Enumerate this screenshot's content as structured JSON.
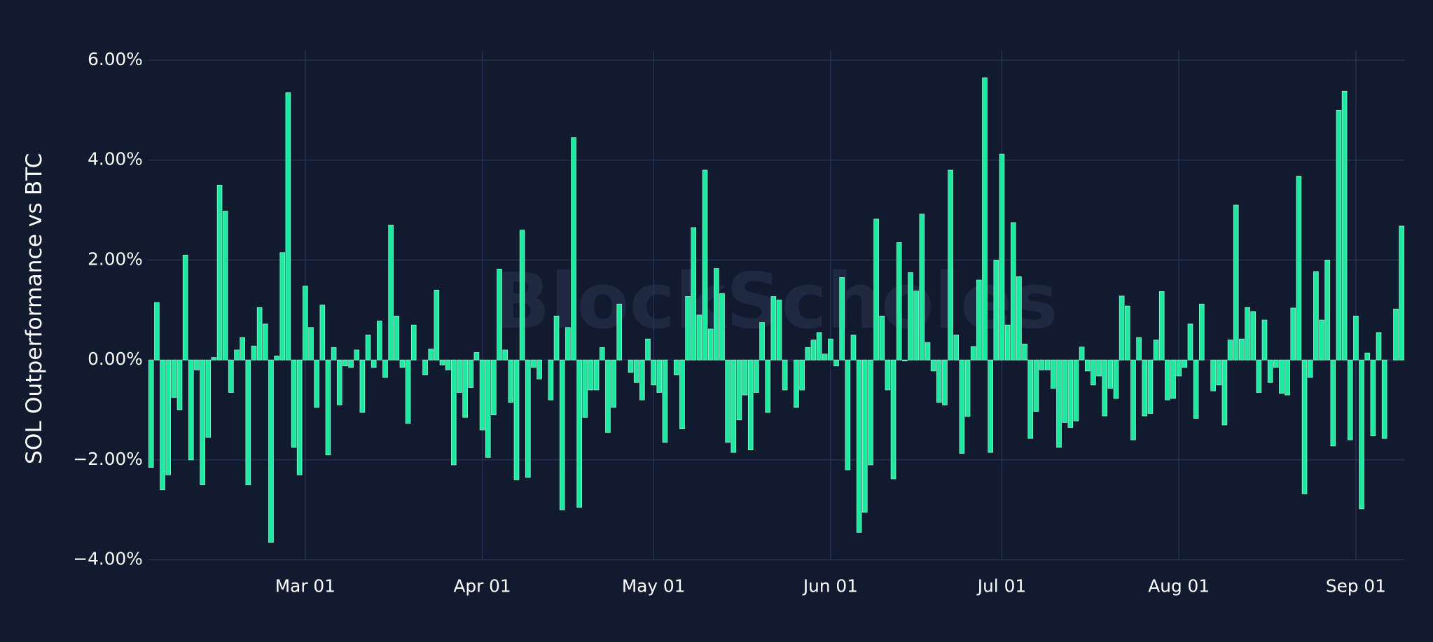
{
  "chart_data": {
    "type": "bar",
    "y_label": "SOL Outperformance vs BTC",
    "watermark": "BlockScholes",
    "color": "#1de9a0",
    "grid": true,
    "ylim": [
      -4.0,
      6.2
    ],
    "yticks": [
      {
        "value": -4,
        "label": "−4.00%"
      },
      {
        "value": -2,
        "label": "−2.00%"
      },
      {
        "value": 0,
        "label": "0.00%"
      },
      {
        "value": 2,
        "label": "2.00%"
      },
      {
        "value": 4,
        "label": "4.00%"
      },
      {
        "value": 6,
        "label": "6.00%"
      }
    ],
    "xticks": [
      "Mar 01",
      "Apr 01",
      "May 01",
      "Jun 01",
      "Jul 01",
      "Aug 01",
      "Sep 01"
    ],
    "x": [
      "Feb 03",
      "Feb 04",
      "Feb 05",
      "Feb 06",
      "Feb 07",
      "Feb 08",
      "Feb 09",
      "Feb 10",
      "Feb 11",
      "Feb 12",
      "Feb 13",
      "Feb 14",
      "Feb 15",
      "Feb 16",
      "Feb 17",
      "Feb 18",
      "Feb 19",
      "Feb 20",
      "Feb 21",
      "Feb 22",
      "Feb 23",
      "Feb 24",
      "Feb 25",
      "Feb 26",
      "Feb 27",
      "Feb 28",
      "Feb 29",
      "Mar 01",
      "Mar 02",
      "Mar 03",
      "Mar 04",
      "Mar 05",
      "Mar 06",
      "Mar 07",
      "Mar 08",
      "Mar 09",
      "Mar 10",
      "Mar 11",
      "Mar 12",
      "Mar 13",
      "Mar 14",
      "Mar 15",
      "Mar 16",
      "Mar 17",
      "Mar 18",
      "Mar 19",
      "Mar 20",
      "Mar 21",
      "Mar 22",
      "Mar 23",
      "Mar 24",
      "Mar 25",
      "Mar 26",
      "Mar 27",
      "Mar 28",
      "Mar 29",
      "Mar 30",
      "Mar 31",
      "Apr 01",
      "Apr 02",
      "Apr 03",
      "Apr 04",
      "Apr 05",
      "Apr 06",
      "Apr 07",
      "Apr 08",
      "Apr 09",
      "Apr 10",
      "Apr 11",
      "Apr 12",
      "Apr 13",
      "Apr 14",
      "Apr 15",
      "Apr 16",
      "Apr 17",
      "Apr 18",
      "Apr 19",
      "Apr 20",
      "Apr 21",
      "Apr 22",
      "Apr 23",
      "Apr 24",
      "Apr 25",
      "Apr 26",
      "Apr 27",
      "Apr 28",
      "Apr 29",
      "Apr 30",
      "May 01",
      "May 02",
      "May 03",
      "May 04",
      "May 05",
      "May 06",
      "May 07",
      "May 08",
      "May 09",
      "May 10",
      "May 11",
      "May 12",
      "May 13",
      "May 14",
      "May 15",
      "May 16",
      "May 17",
      "May 18",
      "May 19",
      "May 20",
      "May 21",
      "May 22",
      "May 23",
      "May 24",
      "May 25",
      "May 26",
      "May 27",
      "May 28",
      "May 29",
      "May 30",
      "May 31",
      "Jun 01",
      "Jun 02",
      "Jun 03",
      "Jun 04",
      "Jun 05",
      "Jun 06",
      "Jun 07",
      "Jun 08",
      "Jun 09",
      "Jun 10",
      "Jun 11",
      "Jun 12",
      "Jun 13",
      "Jun 14",
      "Jun 15",
      "Jun 16",
      "Jun 17",
      "Jun 18",
      "Jun 19",
      "Jun 20",
      "Jun 21",
      "Jun 22",
      "Jun 23",
      "Jun 24",
      "Jun 25",
      "Jun 26",
      "Jun 27",
      "Jun 28",
      "Jun 29",
      "Jun 30",
      "Jul 01",
      "Jul 02",
      "Jul 03",
      "Jul 04",
      "Jul 05",
      "Jul 06",
      "Jul 07",
      "Jul 08",
      "Jul 09",
      "Jul 10",
      "Jul 11",
      "Jul 12",
      "Jul 13",
      "Jul 14",
      "Jul 15",
      "Jul 16",
      "Jul 17",
      "Jul 18",
      "Jul 19",
      "Jul 20",
      "Jul 21",
      "Jul 22",
      "Jul 23",
      "Jul 24",
      "Jul 25",
      "Jul 26",
      "Jul 27",
      "Jul 28",
      "Jul 29",
      "Jul 30",
      "Jul 31",
      "Aug 01",
      "Aug 02",
      "Aug 03",
      "Aug 04",
      "Aug 05",
      "Aug 06",
      "Aug 07",
      "Aug 08",
      "Aug 09",
      "Aug 10",
      "Aug 11",
      "Aug 12",
      "Aug 13",
      "Aug 14",
      "Aug 15",
      "Aug 16",
      "Aug 17",
      "Aug 18",
      "Aug 19",
      "Aug 20",
      "Aug 21",
      "Aug 22",
      "Aug 23",
      "Aug 24",
      "Aug 25",
      "Aug 26",
      "Aug 27",
      "Aug 28",
      "Aug 29",
      "Aug 30",
      "Aug 31",
      "Sep 01",
      "Sep 02",
      "Sep 03",
      "Sep 04",
      "Sep 05",
      "Sep 06",
      "Sep 07",
      "Sep 08",
      "Sep 09"
    ],
    "values": [
      -2.15,
      1.15,
      -2.6,
      -2.3,
      -0.75,
      -1.0,
      2.1,
      -2.0,
      -0.2,
      -2.5,
      -1.55,
      0.05,
      3.5,
      2.98,
      -0.65,
      0.2,
      0.45,
      -2.5,
      0.28,
      1.05,
      0.72,
      -3.65,
      0.08,
      2.15,
      5.35,
      -1.75,
      -2.3,
      1.48,
      0.65,
      -0.95,
      1.1,
      -1.9,
      0.25,
      -0.9,
      -0.12,
      -0.15,
      0.2,
      -1.05,
      0.5,
      -0.15,
      0.78,
      -0.35,
      2.7,
      0.88,
      -0.15,
      -1.27,
      0.7,
      0.0,
      -0.3,
      0.22,
      1.4,
      -0.1,
      -0.2,
      -2.1,
      -0.65,
      -1.15,
      -0.55,
      0.15,
      -1.4,
      -1.95,
      -1.1,
      1.82,
      0.2,
      -0.85,
      -2.4,
      2.6,
      -2.35,
      -0.15,
      -0.38,
      0.0,
      -0.8,
      0.88,
      -3.0,
      0.65,
      4.45,
      -2.95,
      -1.15,
      -0.6,
      -0.6,
      0.25,
      -1.45,
      -0.95,
      1.12,
      0.0,
      -0.25,
      -0.45,
      -0.8,
      0.42,
      -0.5,
      -0.65,
      -1.65,
      0.0,
      -0.3,
      -1.38,
      1.27,
      2.65,
      0.9,
      3.8,
      0.62,
      1.83,
      1.33,
      -1.65,
      -1.85,
      -1.2,
      -0.7,
      -1.8,
      -0.65,
      0.75,
      -1.05,
      1.27,
      1.2,
      -0.6,
      0.0,
      -0.95,
      -0.6,
      0.25,
      0.4,
      0.55,
      0.12,
      0.42,
      -0.12,
      1.65,
      -2.2,
      0.5,
      -3.45,
      -3.05,
      -2.1,
      2.82,
      0.88,
      -0.6,
      -2.38,
      2.35,
      -0.02,
      1.75,
      1.38,
      2.92,
      0.35,
      -0.22,
      -0.85,
      -0.9,
      3.8,
      0.5,
      -1.87,
      -1.13,
      0.27,
      1.6,
      5.65,
      -1.85,
      2.0,
      4.12,
      0.7,
      2.75,
      1.67,
      0.32,
      -1.57,
      -1.03,
      -0.2,
      -0.2,
      -0.57,
      -1.75,
      -1.25,
      -1.35,
      -1.22,
      0.26,
      -0.22,
      -0.5,
      -0.32,
      -1.12,
      -0.57,
      -0.77,
      1.28,
      1.08,
      -1.6,
      0.45,
      -1.12,
      -1.07,
      0.4,
      1.37,
      -0.8,
      -0.77,
      -0.32,
      -0.15,
      0.72,
      -1.17,
      1.12,
      0.0,
      -0.62,
      -0.5,
      -1.3,
      0.4,
      3.1,
      0.42,
      1.05,
      0.97,
      -0.65,
      0.8,
      -0.45,
      -0.15,
      -0.67,
      -0.7,
      1.04,
      3.68,
      -2.68,
      -0.35,
      1.77,
      0.8,
      2.0,
      -1.72,
      5.0,
      5.38,
      -1.6,
      0.88,
      -2.98,
      0.14,
      -1.52,
      0.55,
      -1.57,
      0.0,
      1.02,
      2.68
    ]
  }
}
